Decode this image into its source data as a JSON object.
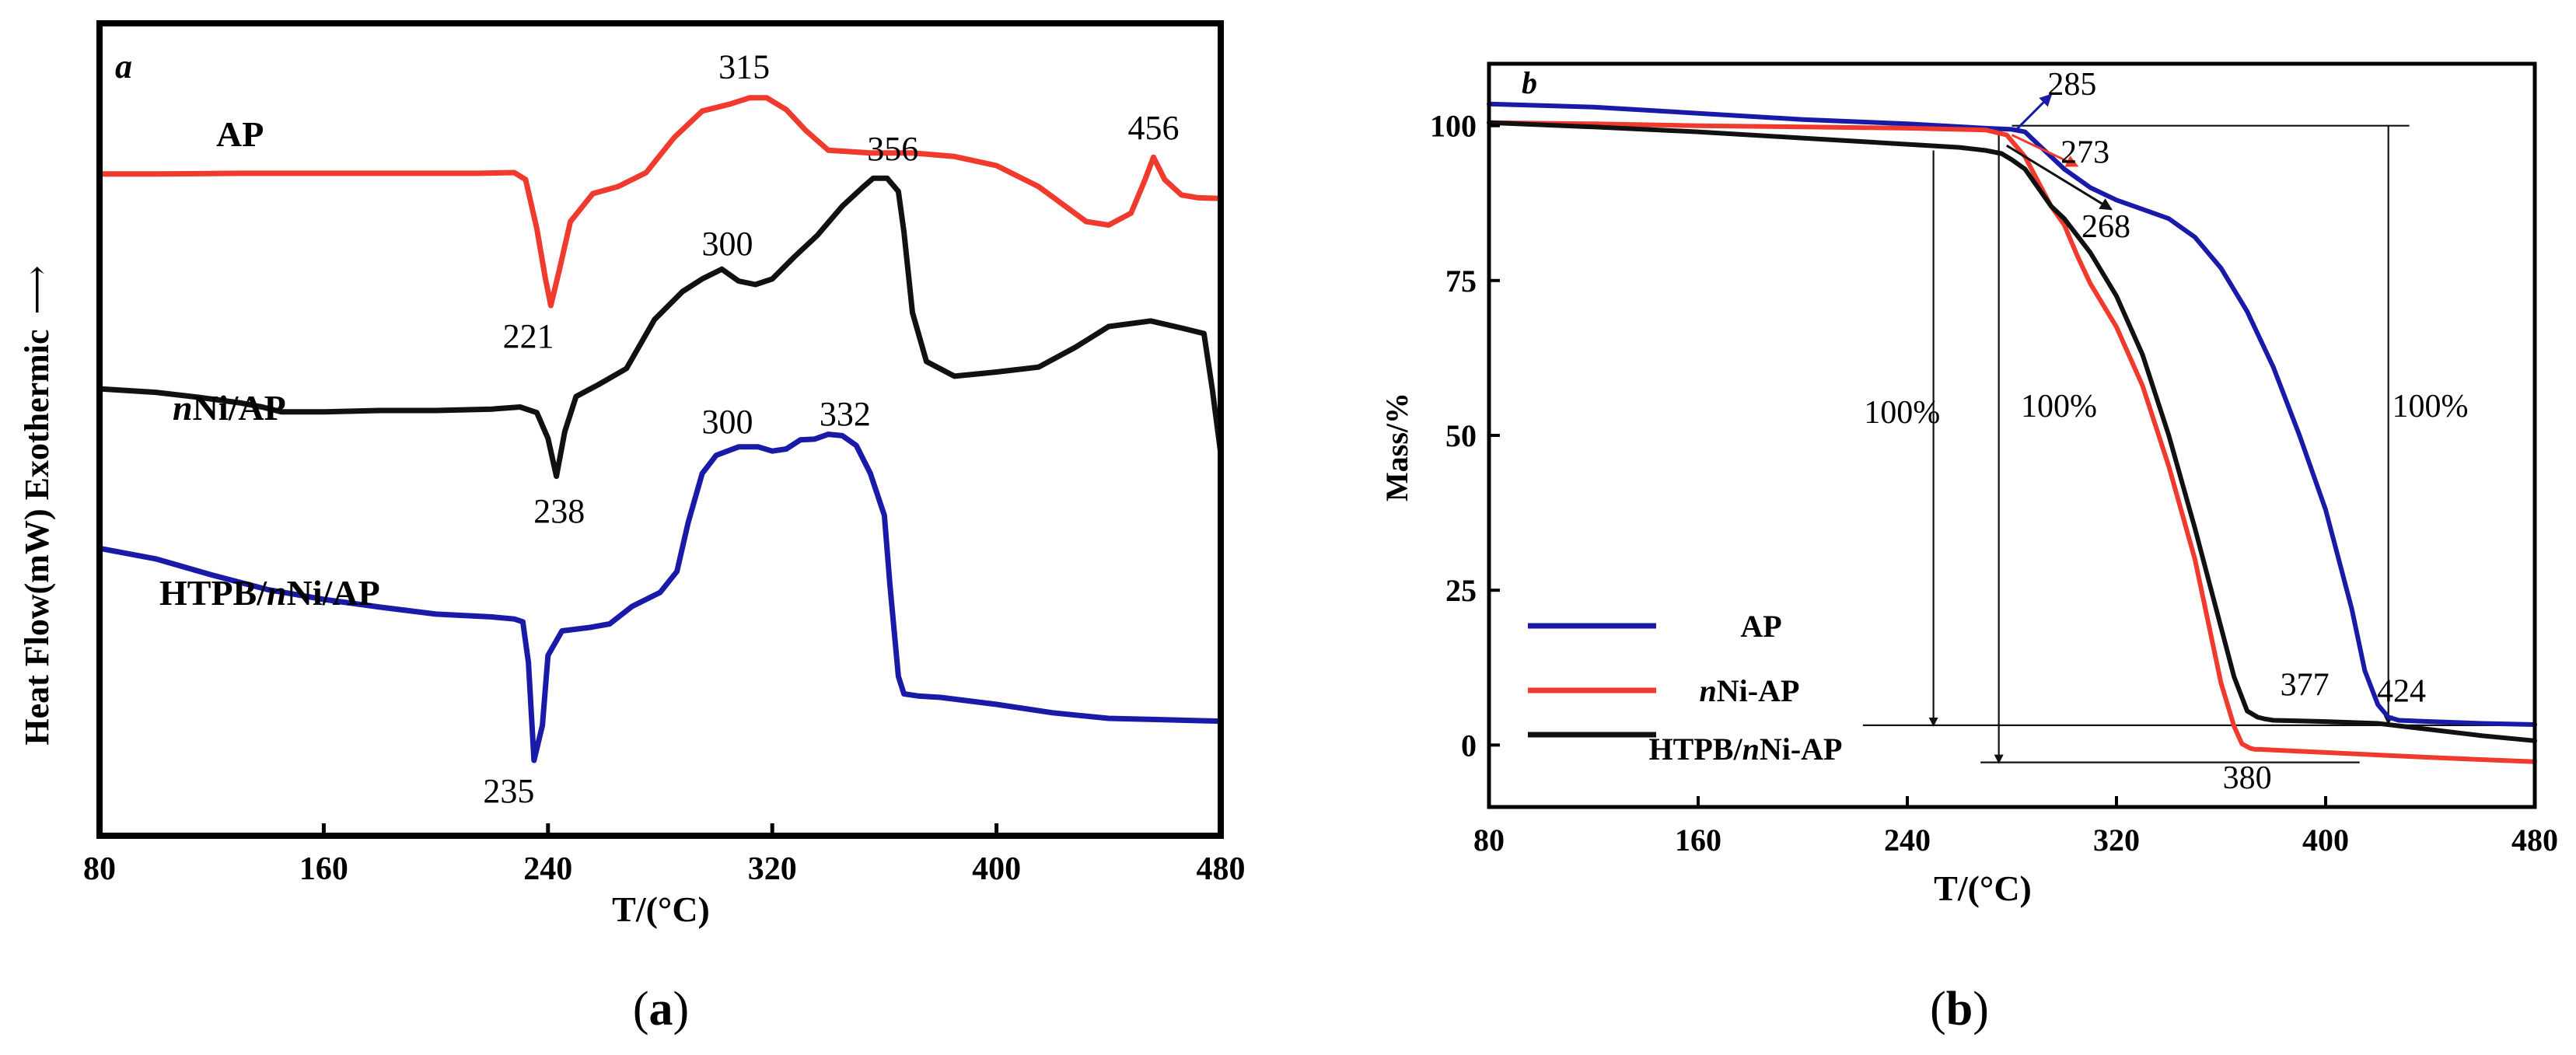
{
  "figure": {
    "panel_a_caption": "(a)",
    "panel_b_caption": "(b)",
    "caption_a_open": "(",
    "caption_a_letter": "a",
    "caption_a_close": ")",
    "caption_b_open": "(",
    "caption_b_letter": "b",
    "caption_b_close": ")"
  },
  "colors": {
    "red": "#f03a2e",
    "black": "#111111",
    "blue": "#1a1aa8"
  },
  "chart_data": [
    {
      "type": "line",
      "panel_label": "a",
      "title": "",
      "xlabel": "T/(°C)",
      "ylabel": "Heat Flow(mW) Exothermic ——→",
      "ylabel_text": "Heat Flow(mW) Exothermic",
      "ylabel_arrow": "⟶",
      "xlim": [
        80,
        480
      ],
      "ylim": [
        0,
        1
      ],
      "x_ticks": [
        80,
        160,
        240,
        320,
        400,
        480
      ],
      "x_tick_labels": [
        "80",
        "160",
        "240",
        "320",
        "400",
        "480"
      ],
      "y_ticks_visible": false,
      "series": [
        {
          "name": "AP",
          "label_prefix": "",
          "label_italic": "",
          "label_rest": "AP",
          "color": "#f03a2e",
          "x": [
            80,
            100,
            130,
            160,
            190,
            215,
            228,
            232,
            236,
            239,
            241,
            244,
            248,
            256,
            265,
            275,
            285,
            295,
            305,
            312,
            318,
            325,
            332,
            340,
            355,
            370,
            385,
            400,
            415,
            432,
            440,
            448,
            453,
            456,
            460,
            466,
            472,
            480
          ],
          "y": [
            0.868,
            0.868,
            0.869,
            0.869,
            0.869,
            0.869,
            0.87,
            0.86,
            0.79,
            0.72,
            0.68,
            0.73,
            0.8,
            0.84,
            0.85,
            0.87,
            0.92,
            0.958,
            0.968,
            0.977,
            0.977,
            0.96,
            0.93,
            0.902,
            0.898,
            0.898,
            0.893,
            0.88,
            0.85,
            0.8,
            0.795,
            0.812,
            0.86,
            0.892,
            0.86,
            0.838,
            0.834,
            0.833
          ]
        },
        {
          "name": "nNi/AP",
          "label_prefix": "",
          "label_italic": "n",
          "label_rest": "Ni/AP",
          "color": "#111111",
          "x": [
            80,
            100,
            115,
            130,
            138,
            145,
            160,
            180,
            200,
            220,
            230,
            236,
            240,
            243,
            246,
            250,
            258,
            268,
            278,
            288,
            295,
            302,
            308,
            314,
            320,
            328,
            336,
            345,
            352,
            356,
            361,
            365,
            367,
            370,
            375,
            385,
            400,
            415,
            428,
            440,
            455,
            468,
            474,
            477,
            480
          ],
          "y": [
            0.561,
            0.556,
            0.549,
            0.541,
            0.535,
            0.528,
            0.528,
            0.53,
            0.53,
            0.532,
            0.535,
            0.527,
            0.49,
            0.436,
            0.5,
            0.55,
            0.567,
            0.59,
            0.66,
            0.7,
            0.718,
            0.732,
            0.715,
            0.71,
            0.718,
            0.75,
            0.78,
            0.822,
            0.848,
            0.862,
            0.862,
            0.843,
            0.785,
            0.67,
            0.6,
            0.579,
            0.585,
            0.592,
            0.62,
            0.65,
            0.658,
            0.646,
            0.64,
            0.56,
            0.468
          ]
        },
        {
          "name": "HTPB/nNi/AP",
          "label_prefix": "HTPB/",
          "label_italic": "n",
          "label_rest": "Ni/AP",
          "color": "#1a1aa8",
          "x": [
            80,
            100,
            120,
            140,
            160,
            180,
            200,
            220,
            228,
            231,
            233,
            235,
            238,
            240,
            245,
            255,
            262,
            270,
            280,
            286,
            290,
            295,
            300,
            308,
            315,
            320,
            325,
            330,
            335,
            340,
            345,
            350,
            355,
            360,
            362,
            365,
            367,
            372,
            380,
            400,
            420,
            440,
            460,
            480
          ],
          "y": [
            0.333,
            0.318,
            0.295,
            0.274,
            0.26,
            0.249,
            0.239,
            0.235,
            0.232,
            0.228,
            0.17,
            0.03,
            0.08,
            0.18,
            0.215,
            0.22,
            0.225,
            0.25,
            0.27,
            0.3,
            0.37,
            0.44,
            0.466,
            0.478,
            0.478,
            0.472,
            0.475,
            0.488,
            0.489,
            0.496,
            0.494,
            0.48,
            0.44,
            0.38,
            0.28,
            0.15,
            0.125,
            0.122,
            0.12,
            0.11,
            0.098,
            0.09,
            0.088,
            0.086
          ]
        }
      ],
      "annotations": [
        {
          "text": "315",
          "x": 310,
          "y": 1.005
        },
        {
          "text": "456",
          "x": 456,
          "y": 0.918
        },
        {
          "text": "221",
          "x": 233,
          "y": 0.62
        },
        {
          "text": "300",
          "x": 304,
          "y": 0.752
        },
        {
          "text": "356",
          "x": 363,
          "y": 0.888
        },
        {
          "text": "238",
          "x": 244,
          "y": 0.37
        },
        {
          "text": "300",
          "x": 304,
          "y": 0.498
        },
        {
          "text": "332",
          "x": 346,
          "y": 0.509
        },
        {
          "text": "235",
          "x": 226,
          "y": -0.03
        }
      ]
    },
    {
      "type": "line",
      "panel_label": "b",
      "title": "",
      "xlabel": "T/(°C)",
      "ylabel": "Mass/%",
      "xlim": [
        80,
        480
      ],
      "ylim": [
        -10,
        110
      ],
      "x_ticks": [
        80,
        160,
        240,
        320,
        400,
        480
      ],
      "x_tick_labels": [
        "80",
        "160",
        "240",
        "320",
        "400",
        "480"
      ],
      "y_ticks": [
        0,
        25,
        50,
        75,
        100
      ],
      "y_tick_labels": [
        "0",
        "25",
        "50",
        "75",
        "100"
      ],
      "legend_position": "lower-left",
      "series": [
        {
          "name": "AP",
          "label_prefix": "",
          "label_italic": "",
          "label_rest": "AP",
          "color": "#1a1aa8",
          "x": [
            80,
            120,
            160,
            200,
            240,
            270,
            280,
            285,
            290,
            300,
            310,
            320,
            330,
            340,
            350,
            360,
            370,
            380,
            390,
            400,
            410,
            415,
            420,
            424,
            428,
            440,
            460,
            480
          ],
          "y": [
            103.5,
            103.0,
            102.0,
            101.0,
            100.3,
            99.6,
            99.4,
            99.0,
            97.0,
            93.0,
            90.0,
            88.0,
            86.5,
            85.0,
            82.0,
            77.0,
            70.0,
            61.0,
            50.0,
            38.0,
            22.0,
            12.0,
            6.5,
            4.5,
            4.0,
            3.8,
            3.5,
            3.3
          ]
        },
        {
          "name": "nNi-AP",
          "label_prefix": "",
          "label_italic": "n",
          "label_rest": "Ni-AP",
          "color": "#f03a2e",
          "x": [
            80,
            120,
            160,
            200,
            240,
            270,
            278,
            285,
            290,
            295,
            300,
            305,
            310,
            320,
            330,
            340,
            350,
            355,
            360,
            365,
            368,
            371,
            373,
            375,
            380,
            400,
            440,
            480
          ],
          "y": [
            100.5,
            100.3,
            100.0,
            99.8,
            99.6,
            99.3,
            98.5,
            95.0,
            91.0,
            87.0,
            84.0,
            79.0,
            74.5,
            67.5,
            58.0,
            45.0,
            30.0,
            20.0,
            10.0,
            3.0,
            0.2,
            -0.5,
            -0.7,
            -0.7,
            -0.8,
            -1.2,
            -2.0,
            -2.7
          ]
        },
        {
          "name": "HTPB/nNi-AP",
          "label_prefix": "HTPB/",
          "label_italic": "n",
          "label_rest": "Ni-AP",
          "color": "#111111",
          "x": [
            80,
            120,
            160,
            200,
            240,
            260,
            270,
            276,
            280,
            285,
            290,
            295,
            300,
            310,
            320,
            330,
            340,
            350,
            360,
            365,
            370,
            374,
            377,
            380,
            390,
            400,
            420,
            440,
            460,
            480
          ],
          "y": [
            100.5,
            99.8,
            99.0,
            98.0,
            97.0,
            96.5,
            96.0,
            95.5,
            94.5,
            93.0,
            90.0,
            87.0,
            85.0,
            79.5,
            72.5,
            63.0,
            50.0,
            35.0,
            19.0,
            11.0,
            5.5,
            4.5,
            4.2,
            4.0,
            3.9,
            3.8,
            3.5,
            2.5,
            1.5,
            0.7
          ]
        }
      ],
      "annotations": [
        {
          "text": "285",
          "x": 303,
          "y": 105
        },
        {
          "text": "273",
          "x": 308,
          "y": 94
        },
        {
          "text": "268",
          "x": 316,
          "y": 82
        },
        {
          "text": "100%",
          "x": 238,
          "y": 52
        },
        {
          "text": "100%",
          "x": 298,
          "y": 53
        },
        {
          "text": "100%",
          "x": 440,
          "y": 53
        },
        {
          "text": "377",
          "x": 392,
          "y": 8
        },
        {
          "text": "424",
          "x": 429,
          "y": 7
        },
        {
          "text": "380",
          "x": 370,
          "y": -7
        }
      ],
      "reference_lines": [
        {
          "kind": "hline",
          "y": 100,
          "x_from": 280,
          "x_to": 432
        },
        {
          "kind": "hline",
          "y": 3.2,
          "x_from": 223,
          "x_to": 480
        },
        {
          "kind": "hline",
          "y": -2.8,
          "x_from": 268,
          "x_to": 413
        },
        {
          "kind": "varrow",
          "x": 250,
          "y_from": 96,
          "y_to": 3.2
        },
        {
          "kind": "varrow",
          "x": 275,
          "y_from": 99.5,
          "y_to": -2.8
        },
        {
          "kind": "varrow",
          "x": 424,
          "y_from": 100,
          "y_to": 3.5
        }
      ],
      "callout_arrows": [
        {
          "from_x": 282,
          "from_y": 99.5,
          "to_x": 295,
          "to_y": 105,
          "color": "#1a1aa8"
        },
        {
          "from_x": 280,
          "from_y": 98.5,
          "to_x": 305,
          "to_y": 93.5,
          "color": "#f03a2e"
        },
        {
          "from_x": 278,
          "from_y": 96.8,
          "to_x": 318,
          "to_y": 86.5,
          "color": "#111111"
        }
      ]
    }
  ]
}
